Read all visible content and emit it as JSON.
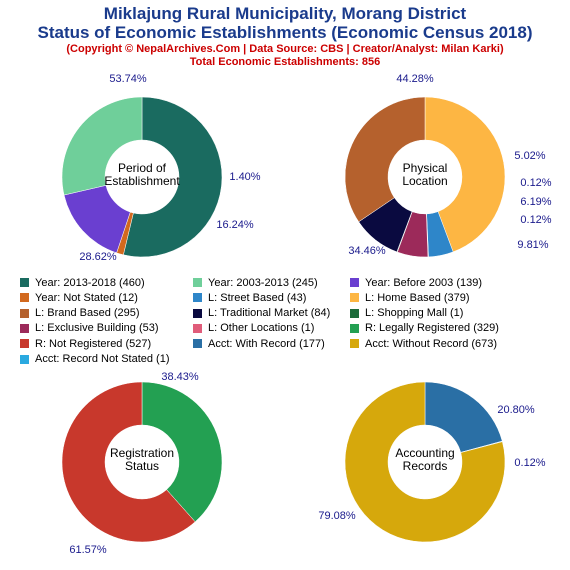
{
  "header": {
    "title": "Miklajung Rural Municipality, Morang District",
    "subtitle": "Status of Economic Establishments (Economic Census 2018)",
    "credit": "(Copyright © NepalArchives.Com | Data Source: CBS | Creator/Analyst: Milan Karki)",
    "total": "Total Economic Establishments: 856"
  },
  "chart_data": [
    {
      "type": "pie",
      "center_label": [
        "Period of",
        "Establishment"
      ],
      "slices": [
        {
          "name": "Year: 2013-2018",
          "value": 460,
          "label": "53.74%",
          "color": "#1a6b60"
        },
        {
          "name": "Year: Not Stated",
          "value": 12,
          "label": "1.40%",
          "color": "#d2691e"
        },
        {
          "name": "Year: Before 2003",
          "value": 139,
          "label": "16.24%",
          "color": "#6a3fd0"
        },
        {
          "name": "Year: 2003-2013",
          "value": 245,
          "label": "28.62%",
          "color": "#6fcf9a"
        }
      ]
    },
    {
      "type": "pie",
      "center_label": [
        "Physical",
        "Location"
      ],
      "slices": [
        {
          "name": "L: Home Based",
          "value": 379,
          "label": "44.28%",
          "color": "#fdb643"
        },
        {
          "name": "L: Street Based",
          "value": 43,
          "label": "5.02%",
          "color": "#2e86c9"
        },
        {
          "name": "L: Other Locations",
          "value": 1,
          "label": "0.12%",
          "color": "#e05c7a"
        },
        {
          "name": "L: Exclusive Building",
          "value": 53,
          "label": "6.19%",
          "color": "#9c2a5a"
        },
        {
          "name": "L: Shopping Mall",
          "value": 1,
          "label": "0.12%",
          "color": "#1c6b3a"
        },
        {
          "name": "L: Traditional Market",
          "value": 84,
          "label": "9.81%",
          "color": "#0a0a40"
        },
        {
          "name": "L: Brand Based",
          "value": 295,
          "label": "34.46%",
          "color": "#b5612d"
        }
      ]
    },
    {
      "type": "pie",
      "center_label": [
        "Registration",
        "Status"
      ],
      "slices": [
        {
          "name": "R: Legally Registered",
          "value": 329,
          "label": "38.43%",
          "color": "#23a052"
        },
        {
          "name": "R: Not Registered",
          "value": 527,
          "label": "61.57%",
          "color": "#c8382c"
        }
      ]
    },
    {
      "type": "pie",
      "center_label": [
        "Accounting",
        "Records"
      ],
      "slices": [
        {
          "name": "Acct: With Record",
          "value": 177,
          "label": "20.80%",
          "color": "#2a6fa5"
        },
        {
          "name": "Acct: Record Not Stated",
          "value": 1,
          "label": "0.12%",
          "color": "#2aa9e0"
        },
        {
          "name": "Acct: Without Record",
          "value": 673,
          "label": "79.08%",
          "color": "#d6a80c"
        }
      ]
    }
  ],
  "legend": [
    {
      "label": "Year: 2013-2018 (460)",
      "color": "#1a6b60"
    },
    {
      "label": "Year: 2003-2013 (245)",
      "color": "#6fcf9a"
    },
    {
      "label": "Year: Before 2003 (139)",
      "color": "#6a3fd0"
    },
    {
      "label": "Year: Not Stated (12)",
      "color": "#d2691e"
    },
    {
      "label": "L: Street Based (43)",
      "color": "#2e86c9"
    },
    {
      "label": "L: Home Based (379)",
      "color": "#fdb643"
    },
    {
      "label": "L: Brand Based (295)",
      "color": "#b5612d"
    },
    {
      "label": "L: Traditional Market (84)",
      "color": "#0a0a40"
    },
    {
      "label": "L: Shopping Mall (1)",
      "color": "#1c6b3a"
    },
    {
      "label": "L: Exclusive Building (53)",
      "color": "#9c2a5a"
    },
    {
      "label": "L: Other Locations (1)",
      "color": "#e05c7a"
    },
    {
      "label": "R: Legally Registered (329)",
      "color": "#23a052"
    },
    {
      "label": "R: Not Registered (527)",
      "color": "#c8382c"
    },
    {
      "label": "Acct: With Record (177)",
      "color": "#2a6fa5"
    },
    {
      "label": "Acct: Without Record (673)",
      "color": "#d6a80c"
    },
    {
      "label": "Acct: Record Not Stated (1)",
      "color": "#2aa9e0"
    }
  ]
}
